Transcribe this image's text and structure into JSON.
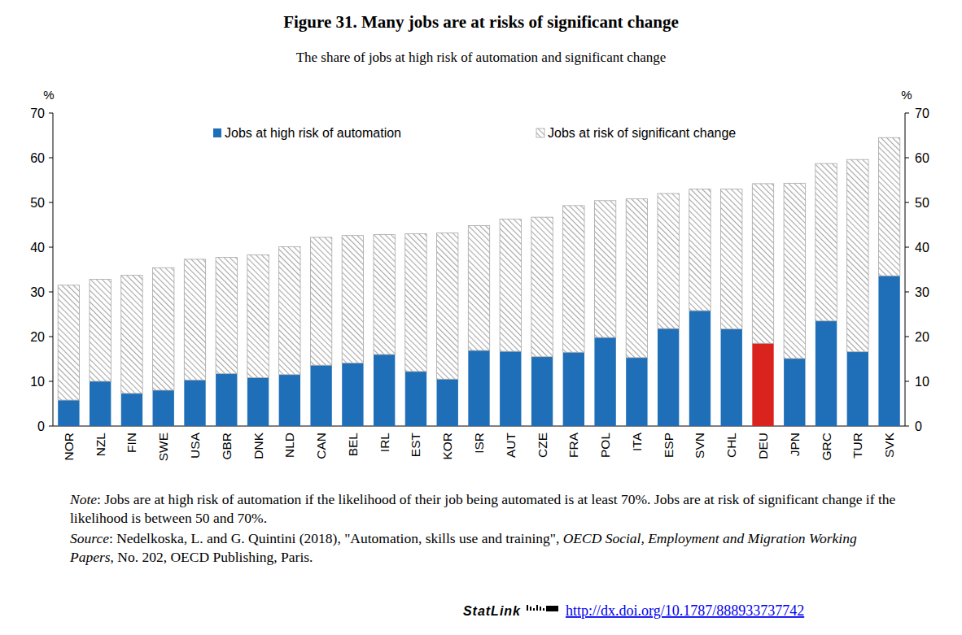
{
  "chart_data": {
    "type": "bar",
    "stacked": true,
    "title": "Figure 31. Many jobs are at risks of significant change",
    "subtitle": "The share of jobs at high risk of automation and significant change",
    "y_label": "%",
    "categories": [
      "NOR",
      "NZL",
      "FIN",
      "SWE",
      "USA",
      "GBR",
      "DNK",
      "NLD",
      "CAN",
      "BEL",
      "IRL",
      "EST",
      "KOR",
      "ISR",
      "AUT",
      "CZE",
      "FRA",
      "POL",
      "ITA",
      "ESP",
      "SVN",
      "CHL",
      "DEU",
      "JPN",
      "GRC",
      "TUR",
      "SVK"
    ],
    "series": [
      {
        "name": "Jobs at high risk of automation",
        "color": "#1f6fb8",
        "colors": [
          "#1f6fb8",
          "#1f6fb8",
          "#1f6fb8",
          "#1f6fb8",
          "#1f6fb8",
          "#1f6fb8",
          "#1f6fb8",
          "#1f6fb8",
          "#1f6fb8",
          "#1f6fb8",
          "#1f6fb8",
          "#1f6fb8",
          "#1f6fb8",
          "#1f6fb8",
          "#1f6fb8",
          "#1f6fb8",
          "#1f6fb8",
          "#1f6fb8",
          "#1f6fb8",
          "#1f6fb8",
          "#1f6fb8",
          "#1f6fb8",
          "#d9231c",
          "#1f6fb8",
          "#1f6fb8",
          "#1f6fb8",
          "#1f6fb8"
        ],
        "values": [
          5.8,
          10.0,
          7.3,
          8.0,
          10.3,
          11.7,
          10.8,
          11.5,
          13.6,
          14.1,
          16.0,
          12.2,
          10.5,
          16.9,
          16.7,
          15.5,
          16.5,
          19.8,
          15.3,
          21.8,
          25.8,
          21.7,
          18.5,
          15.1,
          23.5,
          16.6,
          33.6
        ]
      },
      {
        "name": "Jobs at risk of significant change",
        "color": "#a6a6a6",
        "values": [
          25.7,
          22.8,
          26.4,
          27.4,
          27.0,
          26.0,
          27.5,
          28.6,
          28.6,
          28.5,
          26.8,
          30.8,
          32.7,
          27.9,
          29.6,
          31.2,
          32.8,
          30.6,
          35.5,
          30.2,
          27.2,
          31.3,
          35.7,
          39.2,
          35.2,
          43.0,
          30.9
        ]
      }
    ],
    "ylim": [
      0,
      70
    ],
    "yticks": [
      0,
      10,
      20,
      30,
      40,
      50,
      60,
      70
    ],
    "grid": false,
    "legend": "top",
    "note": [
      "Note",
      ": Jobs are at high risk of automation if the likelihood of their job being automated is at least 70%. Jobs are at risk of significant change if the likelihood is between 50 and 70%."
    ],
    "source": [
      "Source",
      ": Nedelkoska, L. and G. Quintini  (2018), \"Automation, skills use and training\", ",
      "OECD Social, Employment and Migration Working Papers",
      ", No. 202, OECD Publishing, Paris."
    ],
    "statlink": {
      "label": "StatLink",
      "url": "http://dx.doi.org/10.1787/888933737742"
    }
  }
}
